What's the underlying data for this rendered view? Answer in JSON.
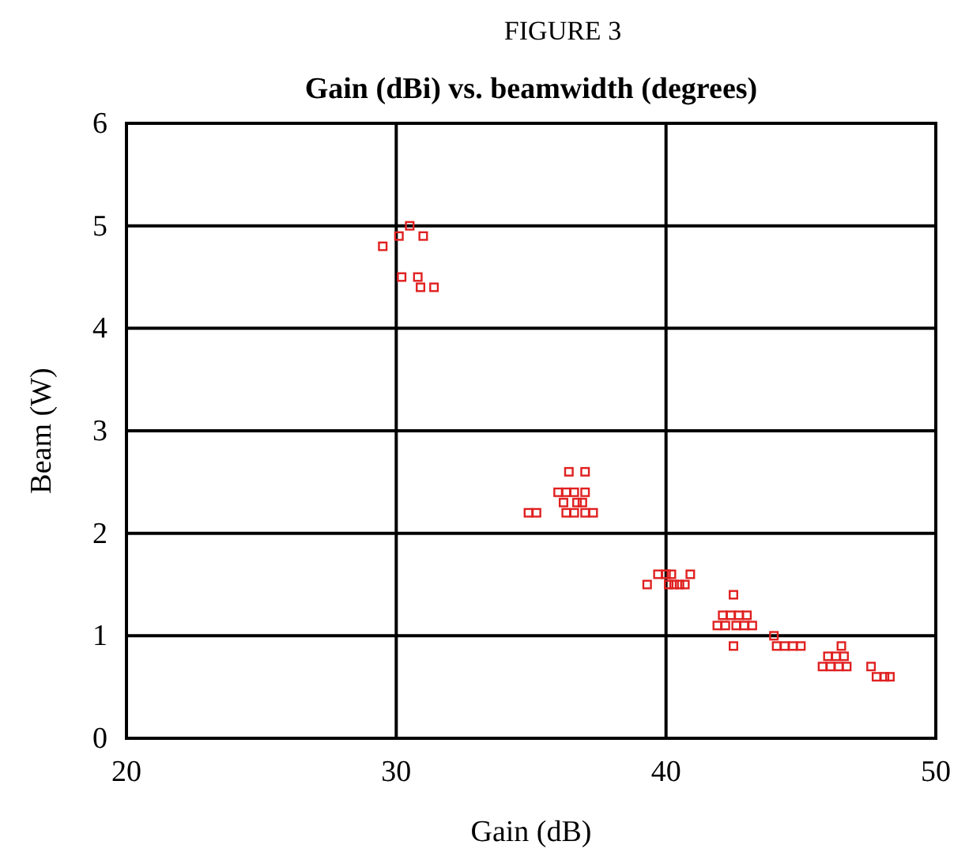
{
  "chart_data": {
    "type": "scatter",
    "title": "FIGURE 3",
    "subtitle": "Gain (dBi) vs. beamwidth (degrees)",
    "xlabel": "Gain (dB)",
    "ylabel": "Beam (W)",
    "xlim": [
      20,
      50
    ],
    "xticks": [
      20,
      30,
      40,
      50
    ],
    "ylim": [
      0,
      6
    ],
    "yticks": [
      0,
      1,
      2,
      3,
      4,
      5,
      6
    ],
    "grid": true,
    "marker": "square",
    "series": [
      {
        "color": "#e02020",
        "x": [
          29.5,
          30.1,
          30.5,
          31.0,
          30.2,
          30.8,
          30.9,
          31.4,
          36.4,
          37.0,
          36.0,
          36.3,
          36.6,
          37.0,
          36.2,
          36.7,
          36.9,
          36.3,
          36.6,
          37.0,
          37.3,
          34.9,
          35.2,
          39.3,
          39.7,
          40.0,
          40.2,
          40.9,
          40.1,
          40.3,
          40.5,
          40.7,
          42.5,
          42.1,
          42.4,
          42.7,
          43.0,
          41.9,
          42.2,
          42.6,
          42.9,
          43.2,
          42.5,
          44.0,
          44.1,
          44.4,
          44.7,
          45.0,
          46.5,
          46.0,
          46.3,
          46.6,
          45.8,
          46.1,
          46.4,
          46.7,
          47.6,
          47.8,
          48.1,
          48.3
        ],
        "values": [
          4.8,
          4.9,
          5.0,
          4.9,
          4.5,
          4.5,
          4.4,
          4.4,
          2.6,
          2.6,
          2.4,
          2.4,
          2.4,
          2.4,
          2.3,
          2.3,
          2.3,
          2.2,
          2.2,
          2.2,
          2.2,
          2.2,
          2.2,
          1.5,
          1.6,
          1.6,
          1.6,
          1.6,
          1.5,
          1.5,
          1.5,
          1.5,
          1.4,
          1.2,
          1.2,
          1.2,
          1.2,
          1.1,
          1.1,
          1.1,
          1.1,
          1.1,
          0.9,
          1.0,
          0.9,
          0.9,
          0.9,
          0.9,
          0.9,
          0.8,
          0.8,
          0.8,
          0.7,
          0.7,
          0.7,
          0.7,
          0.7,
          0.6,
          0.6,
          0.6
        ]
      }
    ]
  }
}
